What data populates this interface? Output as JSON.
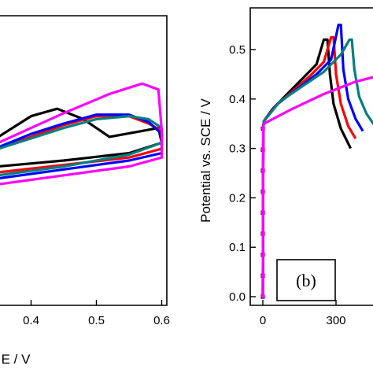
{
  "chart_data": [
    {
      "panel": "a",
      "type": "line",
      "xlabel": "E / V",
      "ylabel": "",
      "xlim": [
        0.25,
        0.65
      ],
      "ylim": [
        -1.0,
        1.0
      ],
      "x_ticks": [
        0.4,
        0.5,
        0.6
      ],
      "x_tick_labels": [
        "0.4",
        "0.5",
        "0.6"
      ],
      "series": [
        {
          "color": "#000000",
          "points": [
            [
              0.25,
              -0.08
            ],
            [
              0.35,
              -0.04
            ],
            [
              0.45,
              0.0
            ],
            [
              0.55,
              0.05
            ],
            [
              0.6,
              0.12
            ],
            [
              0.595,
              0.22
            ],
            [
              0.57,
              0.2
            ],
            [
              0.52,
              0.16
            ],
            [
              0.48,
              0.28
            ],
            [
              0.44,
              0.35
            ],
            [
              0.4,
              0.3
            ],
            [
              0.35,
              0.16
            ],
            [
              0.3,
              0.06
            ],
            [
              0.25,
              0.02
            ]
          ]
        },
        {
          "color": "#ff0000",
          "points": [
            [
              0.25,
              -0.12
            ],
            [
              0.35,
              -0.08
            ],
            [
              0.45,
              -0.03
            ],
            [
              0.55,
              0.02
            ],
            [
              0.6,
              0.08
            ],
            [
              0.6,
              0.2
            ],
            [
              0.58,
              0.25
            ],
            [
              0.55,
              0.3
            ],
            [
              0.5,
              0.3
            ],
            [
              0.45,
              0.24
            ],
            [
              0.4,
              0.16
            ],
            [
              0.35,
              0.08
            ],
            [
              0.3,
              0.02
            ],
            [
              0.25,
              -0.03
            ]
          ]
        },
        {
          "color": "#0000ff",
          "points": [
            [
              0.25,
              -0.16
            ],
            [
              0.35,
              -0.12
            ],
            [
              0.45,
              -0.06
            ],
            [
              0.55,
              0.0
            ],
            [
              0.6,
              0.05
            ],
            [
              0.6,
              0.18
            ],
            [
              0.58,
              0.26
            ],
            [
              0.55,
              0.31
            ],
            [
              0.5,
              0.31
            ],
            [
              0.45,
              0.25
            ],
            [
              0.4,
              0.18
            ],
            [
              0.35,
              0.09
            ],
            [
              0.3,
              0.02
            ],
            [
              0.25,
              -0.05
            ]
          ]
        },
        {
          "color": "#007f7f",
          "points": [
            [
              0.25,
              -0.14
            ],
            [
              0.35,
              -0.1
            ],
            [
              0.45,
              -0.04
            ],
            [
              0.55,
              0.04
            ],
            [
              0.6,
              0.12
            ],
            [
              0.6,
              0.22
            ],
            [
              0.58,
              0.28
            ],
            [
              0.55,
              0.3
            ],
            [
              0.5,
              0.28
            ],
            [
              0.45,
              0.22
            ],
            [
              0.4,
              0.15
            ],
            [
              0.35,
              0.08
            ],
            [
              0.3,
              0.01
            ],
            [
              0.25,
              -0.04
            ]
          ]
        },
        {
          "color": "#ff00ff",
          "points": [
            [
              0.25,
              -0.2
            ],
            [
              0.35,
              -0.16
            ],
            [
              0.45,
              -0.1
            ],
            [
              0.55,
              -0.04
            ],
            [
              0.6,
              0.02
            ],
            [
              0.6,
              0.2
            ],
            [
              0.595,
              0.48
            ],
            [
              0.57,
              0.52
            ],
            [
              0.52,
              0.45
            ],
            [
              0.45,
              0.32
            ],
            [
              0.4,
              0.22
            ],
            [
              0.35,
              0.12
            ],
            [
              0.3,
              0.03
            ],
            [
              0.25,
              -0.08
            ]
          ]
        }
      ]
    },
    {
      "panel": "b",
      "type": "line",
      "ylabel": "Potential vs. SCE / V",
      "xlabel": "",
      "xlim": [
        -70,
        720
      ],
      "ylim": [
        -0.03,
        0.57
      ],
      "y_ticks": [
        0.0,
        0.1,
        0.2,
        0.3,
        0.4,
        0.5
      ],
      "y_tick_labels": [
        "0.0",
        "0.1",
        "0.2",
        "0.3",
        "0.4",
        "0.5"
      ],
      "x_ticks": [
        0,
        300
      ],
      "x_tick_labels": [
        "0",
        "300"
      ],
      "annotation": "(b)",
      "series": [
        {
          "color": "#000000",
          "marker": "square",
          "points": [
            [
              0,
              0.0
            ],
            [
              1,
              0.2
            ],
            [
              2,
              0.34
            ],
            [
              4,
              0.355
            ],
            [
              40,
              0.38
            ],
            [
              100,
              0.41
            ],
            [
              160,
              0.44
            ],
            [
              220,
              0.47
            ],
            [
              250,
              0.52
            ],
            [
              265,
              0.52
            ],
            [
              275,
              0.45
            ],
            [
              290,
              0.39
            ],
            [
              320,
              0.34
            ],
            [
              360,
              0.3
            ]
          ]
        },
        {
          "color": "#ff0000",
          "marker": "circle",
          "points": [
            [
              0,
              0.0
            ],
            [
              1,
              0.2
            ],
            [
              2,
              0.34
            ],
            [
              4,
              0.355
            ],
            [
              50,
              0.385
            ],
            [
              120,
              0.415
            ],
            [
              190,
              0.445
            ],
            [
              250,
              0.475
            ],
            [
              280,
              0.525
            ],
            [
              290,
              0.525
            ],
            [
              300,
              0.45
            ],
            [
              320,
              0.39
            ],
            [
              350,
              0.345
            ],
            [
              380,
              0.32
            ]
          ]
        },
        {
          "color": "#0000ff",
          "marker": "triangle",
          "points": [
            [
              0,
              0.0
            ],
            [
              1,
              0.2
            ],
            [
              2,
              0.34
            ],
            [
              4,
              0.355
            ],
            [
              60,
              0.39
            ],
            [
              140,
              0.42
            ],
            [
              220,
              0.45
            ],
            [
              280,
              0.48
            ],
            [
              310,
              0.55
            ],
            [
              320,
              0.55
            ],
            [
              330,
              0.46
            ],
            [
              350,
              0.4
            ],
            [
              380,
              0.36
            ],
            [
              410,
              0.335
            ]
          ]
        },
        {
          "color": "#007f7f",
          "marker": "diamond",
          "points": [
            [
              0,
              0.0
            ],
            [
              1,
              0.2
            ],
            [
              2,
              0.34
            ],
            [
              4,
              0.355
            ],
            [
              70,
              0.395
            ],
            [
              160,
              0.425
            ],
            [
              250,
              0.455
            ],
            [
              320,
              0.49
            ],
            [
              355,
              0.52
            ],
            [
              365,
              0.52
            ],
            [
              375,
              0.46
            ],
            [
              395,
              0.405
            ],
            [
              425,
              0.37
            ],
            [
              460,
              0.345
            ]
          ]
        },
        {
          "color": "#ff00ff",
          "marker": "left-triangle",
          "points": [
            [
              0,
              0.0
            ],
            [
              1,
              0.2
            ],
            [
              2,
              0.34
            ],
            [
              4,
              0.35
            ],
            [
              120,
              0.38
            ],
            [
              250,
              0.41
            ],
            [
              380,
              0.435
            ],
            [
              500,
              0.45
            ],
            [
              560,
              0.465
            ]
          ]
        }
      ]
    }
  ]
}
